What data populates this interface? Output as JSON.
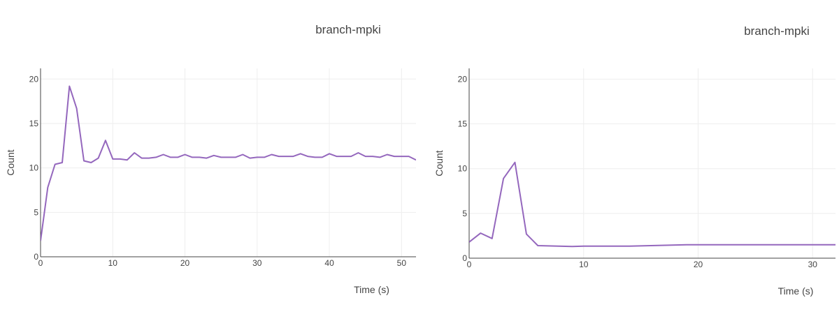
{
  "colors": {
    "series": "#9467bd",
    "grid": "#eeeeee",
    "axis": "#444444",
    "text": "#444444"
  },
  "chart_data": [
    {
      "type": "line",
      "title": "branch-mpki",
      "xlabel": "Time (s)",
      "ylabel": "Count",
      "xlim": [
        0,
        52
      ],
      "ylim": [
        0,
        21.2
      ],
      "xticks": [
        0,
        10,
        20,
        30,
        40,
        50
      ],
      "yticks": [
        0,
        5,
        10,
        15,
        20
      ],
      "grid": true,
      "series": [
        {
          "x": [
            0,
            1,
            2,
            3,
            4,
            5,
            6,
            7,
            8,
            9,
            10,
            11,
            12,
            13,
            14,
            15,
            16,
            17,
            18,
            19,
            20,
            21,
            22,
            23,
            24,
            25,
            26,
            27,
            28,
            29,
            30,
            31,
            32,
            33,
            34,
            35,
            36,
            37,
            38,
            39,
            40,
            41,
            42,
            43,
            44,
            45,
            46,
            47,
            48,
            49,
            50,
            51,
            52
          ],
          "values": [
            1.8,
            7.8,
            10.4,
            10.6,
            19.2,
            16.7,
            10.8,
            10.6,
            11.1,
            13.1,
            11.0,
            11.0,
            10.9,
            11.7,
            11.1,
            11.1,
            11.2,
            11.5,
            11.2,
            11.2,
            11.5,
            11.2,
            11.2,
            11.1,
            11.4,
            11.2,
            11.2,
            11.2,
            11.5,
            11.1,
            11.2,
            11.2,
            11.5,
            11.3,
            11.3,
            11.3,
            11.6,
            11.3,
            11.2,
            11.2,
            11.6,
            11.3,
            11.3,
            11.3,
            11.7,
            11.3,
            11.3,
            11.2,
            11.5,
            11.3,
            11.3,
            11.3,
            10.9
          ]
        }
      ]
    },
    {
      "type": "line",
      "title": "branch-mpki",
      "xlabel": "Time (s)",
      "ylabel": "Count",
      "xlim": [
        0,
        32
      ],
      "ylim": [
        0,
        21.2
      ],
      "xticks": [
        0,
        10,
        20,
        30
      ],
      "yticks": [
        0,
        5,
        10,
        15,
        20
      ],
      "grid": true,
      "series": [
        {
          "x": [
            0,
            1,
            2,
            3,
            4,
            5,
            6,
            9,
            10,
            14,
            19,
            25,
            32
          ],
          "values": [
            1.8,
            2.8,
            2.2,
            8.9,
            10.7,
            2.7,
            1.4,
            1.3,
            1.35,
            1.35,
            1.5,
            1.5,
            1.5
          ]
        }
      ]
    }
  ]
}
